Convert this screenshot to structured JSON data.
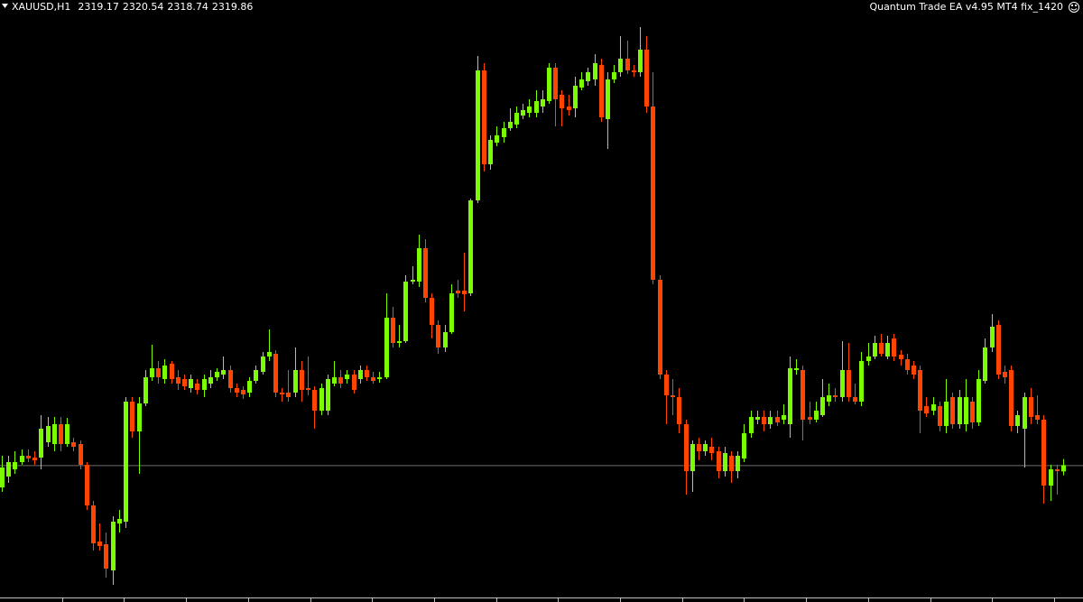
{
  "chart_data": {
    "type": "candlestick",
    "symbol": "XAUUSD,H1",
    "title": "Quantum Trade EA v4.95 MT4 fix_1420",
    "up_color": "#7cfc00",
    "down_color": "#ff4500",
    "background": "#000000",
    "ylim": [
      2305.2,
      2371.4
    ],
    "open": [
      2317.4,
      2318.6,
      2319.4,
      2320.2,
      2320.9,
      2320.7,
      2320.7,
      2322.4,
      2322.2,
      2324.4,
      2322.2,
      2322.4,
      2322.2,
      2319.9,
      2315.4,
      2311.4,
      2311.1,
      2308.2,
      2313.4,
      2313.6,
      2326.9,
      2323.6,
      2326.7,
      2329.6,
      2330.6,
      2329.4,
      2331.1,
      2329.6,
      2329.4,
      2328.4,
      2328.9,
      2328.2,
      2328.9,
      2329.6,
      2329.9,
      2330.4,
      2328.4,
      2328.2,
      2327.9,
      2329.2,
      2330.2,
      2331.9,
      2332.2,
      2327.9,
      2327.9,
      2327.9,
      2330.4,
      2328.4,
      2328.2,
      2325.9,
      2325.9,
      2328.9,
      2329.6,
      2329.4,
      2329.9,
      2329.4,
      2330.4,
      2329.6,
      2329.4,
      2329.6,
      2336.2,
      2333.4,
      2333.6,
      2340.2,
      2340.2,
      2343.9,
      2338.4,
      2335.4,
      2332.9,
      2334.6,
      2339.2,
      2339.2,
      2338.9,
      2349.2,
      2363.6,
      2353.2,
      2355.6,
      2356.2,
      2357.2,
      2357.6,
      2358.6,
      2358.9,
      2358.9,
      2359.6,
      2360.2,
      2363.9,
      2360.9,
      2359.6,
      2359.4,
      2361.7,
      2362.4,
      2362.6,
      2364.2,
      2358.2,
      2362.6,
      2363.4,
      2364.9,
      2363.6,
      2363.4,
      2365.9,
      2359.6,
      2340.4,
      2329.9,
      2327.6,
      2327.4,
      2324.4,
      2319.2,
      2322.2,
      2321.4,
      2321.9,
      2321.4,
      2319.2,
      2320.9,
      2319.2,
      2320.6,
      2323.4,
      2324.9,
      2325.2,
      2324.4,
      2325.2,
      2324.9,
      2324.4,
      2330.4,
      2330.4,
      2325.2,
      2324.9,
      2325.4,
      2326.9,
      2327.6,
      2327.4,
      2330.4,
      2327.4,
      2326.9,
      2331.4,
      2331.9,
      2333.4,
      2331.9,
      2333.9,
      2332.1,
      2331.6,
      2330.9,
      2330.4,
      2326.4,
      2325.9,
      2326.4,
      2324.2,
      2327.4,
      2324.4,
      2324.4,
      2326.9,
      2324.6,
      2329.2,
      2332.9,
      2335.4,
      2330.2,
      2330.4,
      2324.2,
      2323.9,
      2327.4,
      2325.4,
      2324.9,
      2317.6,
      2319.4,
      2319.17
    ],
    "high": [
      2320.9,
      2320.9,
      2321.4,
      2321.6,
      2321.6,
      2321.4,
      2325.4,
      2325.2,
      2325.2,
      2325.2,
      2325.1,
      2322.9,
      2322.6,
      2320.2,
      2315.9,
      2313.4,
      2312.4,
      2314.2,
      2314.9,
      2327.4,
      2327.4,
      2327.4,
      2330.4,
      2333.2,
      2331.4,
      2331.6,
      2331.4,
      2330.4,
      2329.9,
      2329.9,
      2329.4,
      2329.9,
      2330.4,
      2330.6,
      2331.9,
      2330.9,
      2328.9,
      2328.6,
      2329.6,
      2330.9,
      2332.4,
      2334.9,
      2332.6,
      2328.4,
      2330.4,
      2332.9,
      2331.4,
      2331.9,
      2328.6,
      2328.9,
      2329.9,
      2331.4,
      2330.4,
      2330.4,
      2330.4,
      2330.9,
      2330.9,
      2330.2,
      2330.2,
      2338.9,
      2337.4,
      2335.4,
      2340.9,
      2341.9,
      2345.4,
      2344.9,
      2338.9,
      2335.9,
      2335.4,
      2339.9,
      2340.4,
      2343.4,
      2349.4,
      2365.2,
      2364.4,
      2356.4,
      2357.4,
      2357.9,
      2359.4,
      2359.6,
      2359.9,
      2360.4,
      2361.4,
      2361.4,
      2364.4,
      2364.4,
      2361.4,
      2360.9,
      2362.9,
      2363.4,
      2363.9,
      2365.4,
      2364.9,
      2363.4,
      2364.2,
      2367.4,
      2366.9,
      2364.2,
      2368.4,
      2367.4,
      2363.4,
      2340.9,
      2330.4,
      2329.4,
      2328.4,
      2324.9,
      2322.6,
      2322.9,
      2322.6,
      2322.9,
      2321.9,
      2321.9,
      2321.4,
      2321.4,
      2324.4,
      2325.9,
      2325.9,
      2325.9,
      2325.9,
      2325.9,
      2326.6,
      2331.9,
      2331.6,
      2330.9,
      2326.9,
      2326.9,
      2329.4,
      2328.9,
      2328.4,
      2333.6,
      2333.4,
      2328.9,
      2332.4,
      2333.4,
      2334.2,
      2334.4,
      2334.2,
      2334.4,
      2332.6,
      2332.2,
      2331.4,
      2330.9,
      2327.4,
      2327.4,
      2326.9,
      2329.4,
      2327.9,
      2328.2,
      2329.4,
      2327.4,
      2330.4,
      2333.9,
      2336.6,
      2335.9,
      2330.9,
      2330.9,
      2325.9,
      2327.9,
      2328.4,
      2327.6,
      2325.4,
      2319.9,
      2319.9,
      2320.54
    ],
    "low": [
      2316.9,
      2317.9,
      2318.9,
      2319.9,
      2320.2,
      2319.9,
      2319.4,
      2321.9,
      2321.4,
      2321.4,
      2321.9,
      2321.4,
      2319.4,
      2314.9,
      2310.4,
      2310.4,
      2307.4,
      2306.6,
      2312.4,
      2312.9,
      2322.9,
      2318.9,
      2326.4,
      2329.2,
      2328.9,
      2328.9,
      2328.9,
      2328.2,
      2328.2,
      2327.9,
      2327.7,
      2327.4,
      2328.4,
      2329.2,
      2329.4,
      2327.9,
      2327.4,
      2327.2,
      2327.4,
      2328.9,
      2329.9,
      2331.4,
      2327.4,
      2326.9,
      2326.9,
      2327.4,
      2326.9,
      2327.6,
      2323.9,
      2325.4,
      2325.4,
      2328.6,
      2328.4,
      2328.9,
      2327.8,
      2328.9,
      2329.2,
      2328.9,
      2329.0,
      2329.4,
      2332.9,
      2332.9,
      2333.4,
      2339.9,
      2339.6,
      2337.9,
      2333.9,
      2332.2,
      2332.4,
      2334.4,
      2338.4,
      2336.9,
      2338.6,
      2348.9,
      2352.4,
      2352.6,
      2355.2,
      2355.6,
      2356.9,
      2357.2,
      2358.2,
      2358.4,
      2358.4,
      2358.9,
      2359.9,
      2357.4,
      2357.4,
      2358.6,
      2358.4,
      2361.4,
      2361.9,
      2361.9,
      2357.9,
      2354.9,
      2362.2,
      2362.9,
      2363.2,
      2362.9,
      2362.9,
      2358.9,
      2339.9,
      2329.4,
      2324.4,
      2325.4,
      2323.4,
      2316.6,
      2316.9,
      2320.4,
      2320.9,
      2320.4,
      2318.4,
      2318.6,
      2317.9,
      2318.4,
      2320.2,
      2322.9,
      2324.4,
      2323.6,
      2323.9,
      2324.2,
      2324.4,
      2322.9,
      2329.9,
      2322.6,
      2324.4,
      2324.6,
      2325.2,
      2326.4,
      2326.9,
      2326.9,
      2326.9,
      2326.6,
      2326.4,
      2330.9,
      2331.6,
      2331.9,
      2331.6,
      2331.4,
      2330.9,
      2329.9,
      2329.4,
      2323.4,
      2325.2,
      2325.4,
      2323.6,
      2323.4,
      2323.9,
      2323.9,
      2323.6,
      2323.9,
      2324.2,
      2328.9,
      2332.4,
      2329.4,
      2328.9,
      2323.6,
      2323.4,
      2319.6,
      2324.4,
      2324.4,
      2315.6,
      2315.9,
      2316.6,
      2318.74
    ],
    "close": [
      2319.6,
      2320.2,
      2320.2,
      2320.9,
      2320.6,
      2320.4,
      2323.9,
      2324.2,
      2324.4,
      2322.2,
      2324.4,
      2321.9,
      2319.9,
      2315.4,
      2311.2,
      2310.9,
      2308.4,
      2313.6,
      2313.9,
      2326.9,
      2323.6,
      2326.7,
      2329.6,
      2330.6,
      2329.6,
      2330.9,
      2329.4,
      2328.9,
      2328.6,
      2329.4,
      2328.2,
      2329.4,
      2329.6,
      2330.2,
      2330.4,
      2328.4,
      2327.9,
      2327.7,
      2329.2,
      2330.4,
      2331.9,
      2332.4,
      2327.9,
      2327.7,
      2327.4,
      2330.4,
      2328.2,
      2328.2,
      2325.9,
      2328.4,
      2329.4,
      2329.6,
      2328.9,
      2329.9,
      2328.2,
      2330.4,
      2329.6,
      2329.2,
      2329.6,
      2336.2,
      2333.4,
      2333.6,
      2340.2,
      2340.4,
      2343.9,
      2338.4,
      2335.4,
      2332.9,
      2334.6,
      2338.9,
      2338.9,
      2338.8,
      2349.2,
      2363.6,
      2353.2,
      2355.9,
      2356.4,
      2357.2,
      2357.9,
      2358.9,
      2359.2,
      2359.6,
      2360.2,
      2360.4,
      2363.9,
      2360.4,
      2359.4,
      2359.2,
      2361.9,
      2362.6,
      2363.4,
      2364.4,
      2358.4,
      2362.6,
      2363.4,
      2364.9,
      2363.6,
      2363.4,
      2365.9,
      2359.6,
      2340.4,
      2329.9,
      2327.6,
      2327.4,
      2324.4,
      2319.2,
      2322.2,
      2321.4,
      2322.2,
      2321.2,
      2319.2,
      2321.2,
      2319.2,
      2320.9,
      2323.4,
      2325.2,
      2325.2,
      2324.4,
      2325.2,
      2324.6,
      2325.4,
      2330.6,
      2330.6,
      2324.9,
      2324.9,
      2325.9,
      2327.4,
      2327.6,
      2327.4,
      2330.4,
      2327.4,
      2326.9,
      2331.4,
      2331.9,
      2333.4,
      2332.2,
      2333.4,
      2331.9,
      2331.6,
      2330.4,
      2329.9,
      2325.9,
      2325.6,
      2326.6,
      2324.2,
      2326.9,
      2324.4,
      2327.4,
      2327.4,
      2324.6,
      2329.4,
      2332.9,
      2335.2,
      2329.9,
      2329.6,
      2324.2,
      2325.4,
      2327.4,
      2325.2,
      2324.9,
      2317.6,
      2319.4,
      2319.2,
      2319.86
    ]
  }
}
